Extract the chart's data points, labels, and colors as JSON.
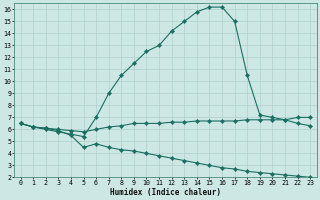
{
  "xlabel": "Humidex (Indice chaleur)",
  "background_color": "#cde8e4",
  "grid_color": "#b0d0cc",
  "line_color": "#1a6e62",
  "xlim": [
    -0.5,
    23.5
  ],
  "ylim": [
    2,
    16.5
  ],
  "xticks": [
    0,
    1,
    2,
    3,
    4,
    5,
    6,
    7,
    8,
    9,
    10,
    11,
    12,
    13,
    14,
    15,
    16,
    17,
    18,
    19,
    20,
    21,
    22,
    23
  ],
  "yticks": [
    2,
    3,
    4,
    5,
    6,
    7,
    8,
    9,
    10,
    11,
    12,
    13,
    14,
    15,
    16
  ],
  "line1_x": [
    0,
    1,
    2,
    3,
    4,
    5,
    6,
    7,
    8,
    9,
    10,
    11,
    12,
    13,
    14,
    15,
    16,
    17,
    18,
    19,
    20,
    21,
    22,
    23
  ],
  "line1_y": [
    6.5,
    6.2,
    6.0,
    5.8,
    5.6,
    5.4,
    7.0,
    9.0,
    10.5,
    11.5,
    12.5,
    13.0,
    14.2,
    15.0,
    15.8,
    16.2,
    16.2,
    15.0,
    10.5,
    7.2,
    7.0,
    6.8,
    6.5,
    6.3
  ],
  "line2_x": [
    0,
    1,
    2,
    3,
    4,
    5,
    6,
    7,
    8,
    9,
    10,
    11,
    12,
    13,
    14,
    15,
    16,
    17,
    18,
    19,
    20,
    21,
    22,
    23
  ],
  "line2_y": [
    6.5,
    6.2,
    6.1,
    6.0,
    5.9,
    5.8,
    6.0,
    6.2,
    6.3,
    6.5,
    6.5,
    6.5,
    6.6,
    6.6,
    6.7,
    6.7,
    6.7,
    6.7,
    6.8,
    6.8,
    6.8,
    6.8,
    7.0,
    7.0
  ],
  "line3_x": [
    0,
    1,
    2,
    3,
    4,
    5,
    6,
    7,
    8,
    9,
    10,
    11,
    12,
    13,
    14,
    15,
    16,
    17,
    18,
    19,
    20,
    21,
    22,
    23
  ],
  "line3_y": [
    6.5,
    6.2,
    6.1,
    5.9,
    5.5,
    4.5,
    4.8,
    4.5,
    4.3,
    4.2,
    4.0,
    3.8,
    3.6,
    3.4,
    3.2,
    3.0,
    2.8,
    2.7,
    2.5,
    2.4,
    2.3,
    2.2,
    2.1,
    2.0
  ]
}
